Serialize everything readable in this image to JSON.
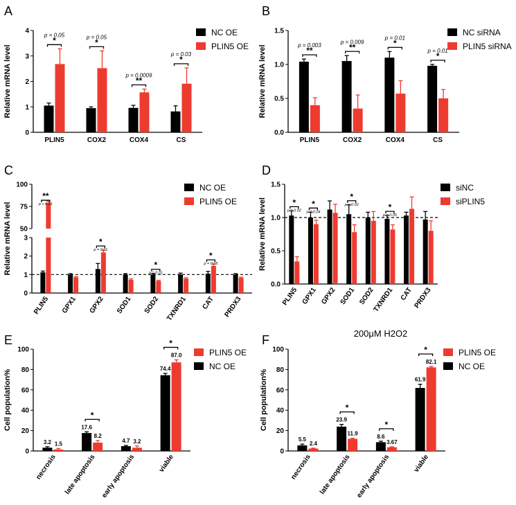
{
  "colors": {
    "ctrl": "#000000",
    "treat": "#ee3b2f"
  },
  "chart_data": [
    {
      "panel": "A",
      "type": "bar",
      "categories": [
        "PLIN5",
        "COX2",
        "COX4",
        "CS"
      ],
      "ylabel": "Relative mRNA level",
      "ylim": [
        0,
        4
      ],
      "yticks": [
        "0",
        "1",
        "2",
        "3",
        "4"
      ],
      "legend_position": "right",
      "series": [
        {
          "name": "NC OE",
          "values": [
            1.05,
            0.95,
            0.96,
            0.82
          ],
          "errors": [
            0.1,
            0.05,
            0.1,
            0.22
          ]
        },
        {
          "name": "PLIN5 OE",
          "values": [
            2.68,
            2.52,
            1.57,
            1.91
          ],
          "errors": [
            0.6,
            0.68,
            0.13,
            0.62
          ]
        }
      ],
      "annotations": [
        {
          "category": "PLIN5",
          "p": "p = 0.05",
          "stars": "*"
        },
        {
          "category": "COX2",
          "p": "p = 0.05",
          "stars": "*"
        },
        {
          "category": "COX4",
          "p": "p = 0.0009",
          "stars": "**"
        },
        {
          "category": "CS",
          "p": "p = 0.03",
          "stars": "*"
        }
      ]
    },
    {
      "panel": "B",
      "type": "bar",
      "categories": [
        "PLIN5",
        "COX2",
        "COX4",
        "CS"
      ],
      "ylabel": "Relative mRNA level",
      "ylim": [
        0,
        1.5
      ],
      "yticks": [
        "0.0",
        "0.5",
        "1.0",
        "1.5"
      ],
      "legend_position": "right",
      "series": [
        {
          "name": "NC siRNA",
          "values": [
            1.04,
            1.05,
            1.1,
            0.98
          ],
          "errors": [
            0.04,
            0.08,
            0.09,
            0.02
          ]
        },
        {
          "name": "PLIN5 siRNA",
          "values": [
            0.4,
            0.35,
            0.57,
            0.5
          ],
          "errors": [
            0.11,
            0.2,
            0.19,
            0.13
          ]
        }
      ],
      "annotations": [
        {
          "category": "PLIN5",
          "p": "p = 0.003",
          "stars": "**"
        },
        {
          "category": "COX2",
          "p": "p = 0.009",
          "stars": "**"
        },
        {
          "category": "COX4",
          "p": "p = 0.01",
          "stars": "*"
        },
        {
          "category": "CS",
          "p": "p = 0.01",
          "stars": "*"
        }
      ]
    },
    {
      "panel": "C",
      "type": "bar",
      "axis_break": true,
      "categories": [
        "PLIN5",
        "GPX1",
        "GPX2",
        "SOD1",
        "SOD2",
        "TXNRD1",
        "CAT",
        "PRDX3"
      ],
      "ylabel": "Relative mRNA level",
      "ylim_lower": [
        0,
        3
      ],
      "ylim_upper": [
        50,
        100
      ],
      "yticks_lower": [
        "0",
        "1",
        "2",
        "3"
      ],
      "yticks_upper": [
        "50",
        "75",
        "100"
      ],
      "reference_line": 1,
      "legend_position": "right",
      "series": [
        {
          "name": "NC OE",
          "values": [
            1.12,
            1.0,
            1.3,
            1.0,
            1.0,
            1.0,
            1.05,
            1.0
          ],
          "errors": [
            0.07,
            0.05,
            0.3,
            0.05,
            0.06,
            0.08,
            0.12,
            0.05
          ]
        },
        {
          "name": "PLIN5 OE",
          "values": [
            79,
            0.85,
            2.2,
            0.72,
            0.65,
            0.78,
            1.47,
            0.82
          ],
          "errors": [
            2,
            0.04,
            0.12,
            0.05,
            0.04,
            0.05,
            0.1,
            0.04
          ]
        }
      ],
      "annotations": [
        {
          "category": "PLIN5",
          "p": "p < 0.01",
          "stars": "**"
        },
        {
          "category": "GPX2",
          "p": "p = 0.01",
          "stars": "*"
        },
        {
          "category": "SOD2",
          "p": "p = 0.01",
          "stars": "*"
        },
        {
          "category": "CAT",
          "p": "p = 0.05",
          "stars": "*"
        }
      ]
    },
    {
      "panel": "D",
      "type": "bar",
      "categories": [
        "PLIN5",
        "GPX1",
        "GPX2",
        "SOD1",
        "SOD2",
        "TXNRD1",
        "CAT",
        "PRDX3"
      ],
      "ylabel": "Relative mRNA level",
      "ylim": [
        0,
        1.5
      ],
      "yticks": [
        "0.0",
        "0.5",
        "1.0",
        "1.5"
      ],
      "reference_line": 1,
      "legend_position": "right",
      "series": [
        {
          "name": "siNC",
          "values": [
            1.03,
            1.0,
            1.12,
            1.05,
            1.0,
            0.98,
            1.03,
            0.97
          ],
          "errors": [
            0.07,
            0.08,
            0.13,
            0.14,
            0.08,
            0.05,
            0.05,
            0.12
          ]
        },
        {
          "name": "siPLIN5",
          "values": [
            0.34,
            0.9,
            1.07,
            0.78,
            0.95,
            0.82,
            1.13,
            0.8
          ],
          "errors": [
            0.07,
            0.06,
            0.13,
            0.11,
            0.14,
            0.07,
            0.18,
            0.15
          ]
        }
      ],
      "annotations": [
        {
          "category": "PLIN5",
          "p": "p = 0.02",
          "stars": "*"
        },
        {
          "category": "GPX1",
          "p": "p = 0.04",
          "stars": "*"
        },
        {
          "category": "SOD1",
          "p": "p = 0.02",
          "stars": "*"
        },
        {
          "category": "TXNRD1",
          "p": "p = 0.05",
          "stars": "*"
        }
      ]
    },
    {
      "panel": "E",
      "type": "bar",
      "title": "",
      "categories": [
        "necrosis",
        "late apoptosis",
        "early apoptosis",
        "viable"
      ],
      "ylabel": "Cell population%",
      "ylim": [
        0,
        100
      ],
      "yticks": [
        "0",
        "20",
        "40",
        "60",
        "80",
        "100"
      ],
      "legend_position": "top-right",
      "legend_order": [
        "PLIN5 OE",
        "NC OE"
      ],
      "series": [
        {
          "name": "NC OE",
          "values": [
            3.2,
            17.6,
            4.7,
            74.4
          ],
          "labels": [
            "3.2",
            "17.6",
            "4.7",
            "74.4"
          ],
          "errors": [
            1.0,
            1.2,
            0.7,
            1.8
          ]
        },
        {
          "name": "PLIN5 OE",
          "values": [
            1.5,
            8.2,
            3.2,
            87.0
          ],
          "labels": [
            "1.5",
            "8.2",
            "3.2",
            "87.0"
          ],
          "errors": [
            1.0,
            2.0,
            1.7,
            2.5
          ]
        }
      ],
      "annotations": [
        {
          "category": "late apoptosis",
          "p": "",
          "stars": "*"
        },
        {
          "category": "viable",
          "p": "",
          "stars": "*"
        }
      ]
    },
    {
      "panel": "F",
      "type": "bar",
      "title": "200μM H2O2",
      "categories": [
        "necrosis",
        "late apoptosis",
        "early apoptosis",
        "viable"
      ],
      "ylabel": "Cell population%",
      "ylim": [
        0,
        100
      ],
      "yticks": [
        "0",
        "20",
        "40",
        "60",
        "80",
        "100"
      ],
      "legend_position": "top-right",
      "legend_order": [
        "PLIN5 OE",
        "NC OE"
      ],
      "series": [
        {
          "name": "NC OE",
          "values": [
            5.5,
            23.9,
            8.6,
            61.9
          ],
          "labels": [
            "5.5",
            "23.9",
            "8.6",
            "61.9"
          ],
          "errors": [
            1.2,
            2.2,
            1.0,
            3.6
          ]
        },
        {
          "name": "PLIN5 OE",
          "values": [
            2.4,
            11.9,
            3.67,
            82.1
          ],
          "labels": [
            "2.4",
            "11.9",
            "3.67",
            "82.1"
          ],
          "errors": [
            0.4,
            0.6,
            0.4,
            0.9
          ]
        }
      ],
      "annotations": [
        {
          "category": "late apoptosis",
          "p": "",
          "stars": "*"
        },
        {
          "category": "early apoptosis",
          "p": "",
          "stars": "*"
        },
        {
          "category": "viable",
          "p": "",
          "stars": "*"
        }
      ]
    }
  ]
}
